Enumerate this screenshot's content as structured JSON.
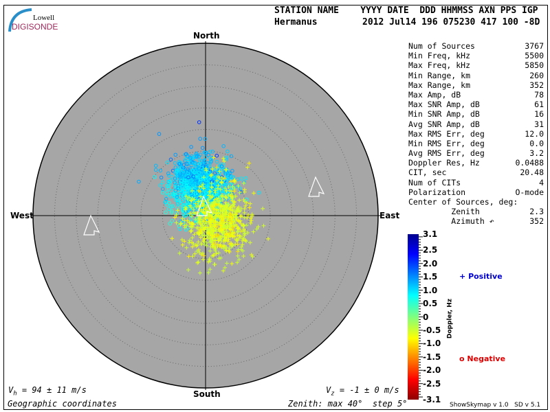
{
  "logo": {
    "line1": "Lowell",
    "line2": "DIGISONDE"
  },
  "header": {
    "labels": "STATION NAME    YYYY DATE  DDD HHMMSS AXN PPS IGP",
    "station": "Hermanus",
    "values": "2012 Jul14 196 075230 417 100 -8D"
  },
  "directions": {
    "north": "North",
    "south": "South",
    "east": "East",
    "west": "West"
  },
  "stats": [
    {
      "label": "Num of Sources",
      "value": "3767"
    },
    {
      "label": "Min Freq, kHz",
      "value": "5500"
    },
    {
      "label": "Max Freq, kHz",
      "value": "5850"
    },
    {
      "label": "Min Range, km",
      "value": "260"
    },
    {
      "label": "Max Range, km",
      "value": "352"
    },
    {
      "label": "Max Amp, dB",
      "value": "78"
    },
    {
      "label": "Max SNR Amp, dB",
      "value": "61"
    },
    {
      "label": "Min SNR Amp, dB",
      "value": "16"
    },
    {
      "label": "Avg SNR Amp, dB",
      "value": "31"
    },
    {
      "label": "Max RMS Err, deg",
      "value": "12.0"
    },
    {
      "label": "Min RMS Err, deg",
      "value": "0.0"
    },
    {
      "label": "Avg RMS Err, deg",
      "value": "3.2"
    },
    {
      "label": "Doppler Res, Hz",
      "value": "0.0488"
    },
    {
      "label": "CIT, sec",
      "value": "20.48"
    },
    {
      "label": "Num of CITs",
      "value": "4"
    },
    {
      "label": "Polarization",
      "value": "O-mode"
    },
    {
      "label": "Center of Sources, deg:",
      "value": ""
    },
    {
      "label": "         Zenith",
      "value": "2.3"
    },
    {
      "label": "         Azimuth ↶",
      "value": "352"
    }
  ],
  "footer": {
    "vh": "V",
    "vh_sub": "h",
    "vh_val": " = 94 ± 11 m/s",
    "vz": "V",
    "vz_sub": "z",
    "vz_val": " = -1 ± 0 m/s",
    "coords": "Geographic coordinates",
    "zenith": "Zenith: max 40°  step 5°",
    "version": "ShowSkymap v 1.0   SD v 5.1"
  },
  "legend": {
    "positive": "Positive",
    "negative": "Negative",
    "positive_color": "#0000cc",
    "negative_color": "#dd0000",
    "positive_marker": "+",
    "negative_marker": "o"
  },
  "chart_data": {
    "type": "scatter",
    "projection": "polar skymap",
    "zenith_max_deg": 40,
    "zenith_step_deg": 5,
    "grid": true,
    "background_color": "#a6a6a6",
    "colorbar": {
      "label": "Doppler, Hz",
      "range": [
        -3.1,
        3.1
      ],
      "ticks": [
        "3.1",
        "2.5",
        "2.0",
        "1.5",
        "1.0",
        "0.5",
        "0",
        "-0.5",
        "-1.0",
        "-1.5",
        "-2.0",
        "-2.5",
        "-3.1"
      ],
      "colormap": "jet (red negative, blue positive)"
    },
    "num_sources": 3767,
    "center_of_sources": {
      "zenith_deg": 2.3,
      "azimuth_deg": 352
    },
    "markers": [
      {
        "name": "Positive",
        "symbol": "cross"
      },
      {
        "name": "Negative",
        "symbol": "circle"
      }
    ]
  }
}
